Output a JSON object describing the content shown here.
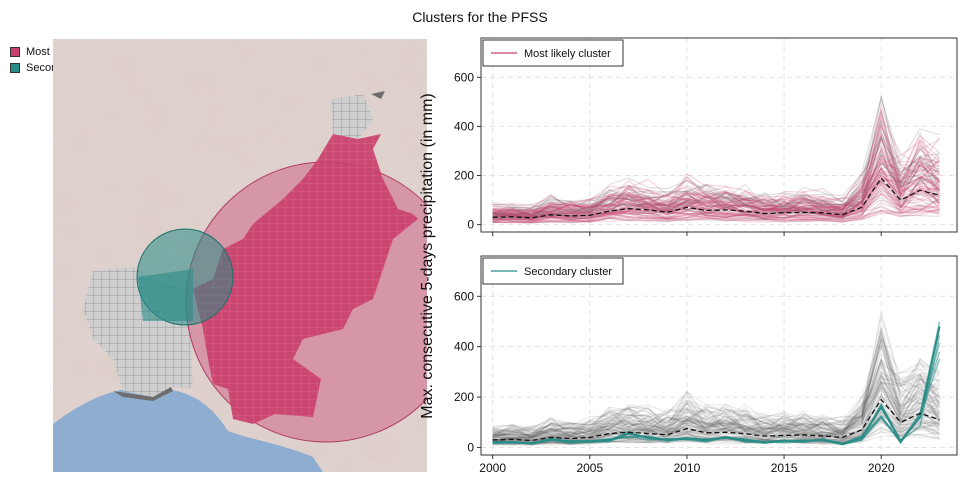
{
  "title": "Clusters for the PFSS",
  "map_legend": {
    "most_likely": {
      "label": "Most likely cluster",
      "color": "#c8406c"
    },
    "secondary": {
      "label": "Secondary cluster",
      "color": "#2a8c87"
    }
  },
  "ylabel": "Max. consecutive 5-days precipitation (in mm)",
  "chart_data": [
    {
      "type": "line",
      "panel": "top",
      "legend": "Most likely cluster",
      "legend_color": "#c8406c",
      "x": [
        2000,
        2001,
        2002,
        2003,
        2004,
        2005,
        2006,
        2007,
        2008,
        2009,
        2010,
        2011,
        2012,
        2013,
        2014,
        2015,
        2016,
        2017,
        2018,
        2019,
        2020,
        2021,
        2022,
        2023
      ],
      "series": [
        {
          "role": "mean",
          "values": [
            30,
            32,
            28,
            40,
            35,
            38,
            55,
            65,
            60,
            50,
            70,
            58,
            60,
            55,
            45,
            48,
            50,
            48,
            40,
            70,
            190,
            100,
            140,
            120
          ]
        }
      ],
      "yticks": [
        0,
        200,
        400,
        600
      ],
      "xticks": [
        2000,
        2005,
        2010,
        2015,
        2020
      ],
      "ylim": [
        -30,
        760
      ],
      "xlim": [
        1999.4,
        2023.9
      ],
      "grid": true
    },
    {
      "type": "line",
      "panel": "bottom",
      "legend": "Secondary cluster",
      "legend_color": "#2a8c87",
      "x": [
        2000,
        2001,
        2002,
        2003,
        2004,
        2005,
        2006,
        2007,
        2008,
        2009,
        2010,
        2011,
        2012,
        2013,
        2014,
        2015,
        2016,
        2017,
        2018,
        2019,
        2020,
        2021,
        2022,
        2023
      ],
      "series": [
        {
          "role": "mean",
          "values": [
            30,
            32,
            28,
            40,
            35,
            40,
            55,
            60,
            55,
            50,
            75,
            58,
            60,
            55,
            45,
            48,
            50,
            45,
            40,
            70,
            190,
            100,
            135,
            110
          ]
        },
        {
          "role": "cluster",
          "values": [
            20,
            22,
            15,
            30,
            25,
            25,
            30,
            55,
            40,
            30,
            35,
            30,
            40,
            30,
            20,
            25,
            25,
            30,
            15,
            40,
            160,
            25,
            120,
            480
          ]
        }
      ],
      "yticks": [
        0,
        200,
        400,
        600
      ],
      "xticks": [
        2000,
        2005,
        2010,
        2015,
        2020
      ],
      "ylim": [
        -30,
        760
      ],
      "xlim": [
        1999.4,
        2023.9
      ],
      "grid": true
    }
  ]
}
